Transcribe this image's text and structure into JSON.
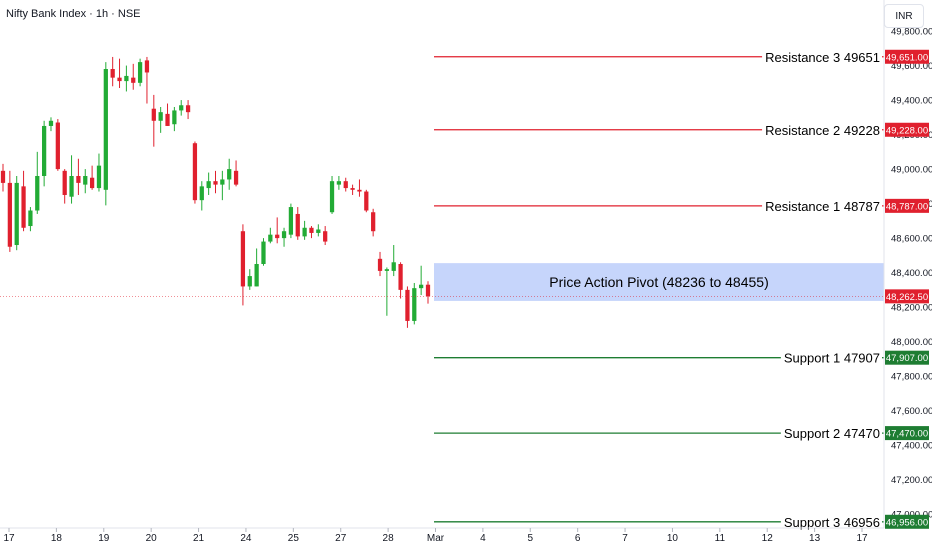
{
  "header": {
    "title": "Nifty Bank Index · 1h · NSE",
    "currency": "INR"
  },
  "colors": {
    "up": "#22ab35",
    "down": "#e0202e",
    "resistance": "#e0202e",
    "support": "#1e7d32",
    "pivot_fill": "#c6d5fb",
    "current": "#e0202e"
  },
  "chart_data": {
    "type": "candlestick",
    "y_ticks": [
      "47,000.00",
      "47,200.00",
      "47,400.00",
      "47,600.00",
      "47,800.00",
      "48,000.00",
      "48,200.00",
      "48,400.00",
      "48,600.00",
      "48,800.00",
      "49,000.00",
      "49,200.00",
      "49,400.00",
      "49,600.00",
      "49,800.00"
    ],
    "ylim": [
      46920,
      49980
    ],
    "x_labels": [
      "17",
      "18",
      "19",
      "20",
      "21",
      "24",
      "25",
      "27",
      "28",
      "Mar",
      "4",
      "5",
      "6",
      "7",
      "10",
      "11",
      "12",
      "13",
      "17"
    ],
    "levels": [
      {
        "kind": "resistance",
        "label": "Resistance 3 49651",
        "value": 49651,
        "price_label": "49,651.00"
      },
      {
        "kind": "resistance",
        "label": "Resistance 2 49228",
        "value": 49228,
        "price_label": "49,228.00"
      },
      {
        "kind": "resistance",
        "label": "Resistance 1 48787",
        "value": 48787,
        "price_label": "48,787.00"
      },
      {
        "kind": "support",
        "label": "Support 1 47907",
        "value": 47907,
        "price_label": "47,907.00"
      },
      {
        "kind": "support",
        "label": "Support 2 47470",
        "value": 47470,
        "price_label": "47,470.00"
      },
      {
        "kind": "support",
        "label": "Support 3 46956",
        "value": 46956,
        "price_label": "46,956.00"
      }
    ],
    "pivot": {
      "label": "Price Action Pivot (48236 to 48455)",
      "low": 48236,
      "high": 48455
    },
    "current_price": {
      "value": 48262.5,
      "price_label": "48,262.50"
    },
    "candles": [
      {
        "o": 48990,
        "h": 49030,
        "l": 48870,
        "c": 48920
      },
      {
        "o": 48920,
        "h": 48990,
        "l": 48520,
        "c": 48550
      },
      {
        "o": 48560,
        "h": 48960,
        "l": 48530,
        "c": 48920
      },
      {
        "o": 48900,
        "h": 48990,
        "l": 48640,
        "c": 48660
      },
      {
        "o": 48670,
        "h": 48780,
        "l": 48640,
        "c": 48760
      },
      {
        "o": 48760,
        "h": 49100,
        "l": 48740,
        "c": 48960
      },
      {
        "o": 48960,
        "h": 49280,
        "l": 48900,
        "c": 49250
      },
      {
        "o": 49250,
        "h": 49300,
        "l": 49220,
        "c": 49280
      },
      {
        "o": 49270,
        "h": 49290,
        "l": 48990,
        "c": 49000
      },
      {
        "o": 48990,
        "h": 49000,
        "l": 48800,
        "c": 48850
      },
      {
        "o": 48840,
        "h": 49080,
        "l": 48800,
        "c": 48960
      },
      {
        "o": 48960,
        "h": 49060,
        "l": 48850,
        "c": 48920
      },
      {
        "o": 48910,
        "h": 49000,
        "l": 48860,
        "c": 48960
      },
      {
        "o": 48950,
        "h": 49020,
        "l": 48880,
        "c": 48890
      },
      {
        "o": 48890,
        "h": 49090,
        "l": 48870,
        "c": 49020
      },
      {
        "o": 48880,
        "h": 49620,
        "l": 48790,
        "c": 49580
      },
      {
        "o": 49580,
        "h": 49650,
        "l": 49480,
        "c": 49530
      },
      {
        "o": 49530,
        "h": 49640,
        "l": 49470,
        "c": 49510
      },
      {
        "o": 49510,
        "h": 49600,
        "l": 49450,
        "c": 49540
      },
      {
        "o": 49530,
        "h": 49610,
        "l": 49460,
        "c": 49500
      },
      {
        "o": 49500,
        "h": 49640,
        "l": 49480,
        "c": 49620
      },
      {
        "o": 49630,
        "h": 49650,
        "l": 49380,
        "c": 49560
      },
      {
        "o": 49350,
        "h": 49430,
        "l": 49130,
        "c": 49280
      },
      {
        "o": 49280,
        "h": 49360,
        "l": 49210,
        "c": 49330
      },
      {
        "o": 49320,
        "h": 49380,
        "l": 49250,
        "c": 49250
      },
      {
        "o": 49260,
        "h": 49360,
        "l": 49220,
        "c": 49340
      },
      {
        "o": 49340,
        "h": 49400,
        "l": 49310,
        "c": 49370
      },
      {
        "o": 49370,
        "h": 49400,
        "l": 49290,
        "c": 49330
      },
      {
        "o": 49150,
        "h": 49160,
        "l": 48800,
        "c": 48820
      },
      {
        "o": 48820,
        "h": 48930,
        "l": 48760,
        "c": 48900
      },
      {
        "o": 48890,
        "h": 48980,
        "l": 48850,
        "c": 48930
      },
      {
        "o": 48930,
        "h": 48990,
        "l": 48860,
        "c": 48910
      },
      {
        "o": 48910,
        "h": 48990,
        "l": 48820,
        "c": 48940
      },
      {
        "o": 48940,
        "h": 49060,
        "l": 48880,
        "c": 49000
      },
      {
        "o": 48990,
        "h": 49050,
        "l": 48900,
        "c": 48910
      },
      {
        "o": 48640,
        "h": 48680,
        "l": 48210,
        "c": 48320
      },
      {
        "o": 48320,
        "h": 48420,
        "l": 48300,
        "c": 48380
      },
      {
        "o": 48320,
        "h": 48540,
        "l": 48320,
        "c": 48450
      },
      {
        "o": 48450,
        "h": 48600,
        "l": 48440,
        "c": 48580
      },
      {
        "o": 48580,
        "h": 48660,
        "l": 48570,
        "c": 48620
      },
      {
        "o": 48620,
        "h": 48720,
        "l": 48570,
        "c": 48600
      },
      {
        "o": 48600,
        "h": 48660,
        "l": 48550,
        "c": 48640
      },
      {
        "o": 48620,
        "h": 48800,
        "l": 48600,
        "c": 48780
      },
      {
        "o": 48740,
        "h": 48780,
        "l": 48590,
        "c": 48610
      },
      {
        "o": 48610,
        "h": 48700,
        "l": 48590,
        "c": 48660
      },
      {
        "o": 48660,
        "h": 48670,
        "l": 48600,
        "c": 48630
      },
      {
        "o": 48630,
        "h": 48680,
        "l": 48610,
        "c": 48650
      },
      {
        "o": 48640,
        "h": 48670,
        "l": 48560,
        "c": 48580
      },
      {
        "o": 48750,
        "h": 48960,
        "l": 48740,
        "c": 48930
      },
      {
        "o": 48910,
        "h": 48960,
        "l": 48880,
        "c": 48930
      },
      {
        "o": 48930,
        "h": 48950,
        "l": 48870,
        "c": 48890
      },
      {
        "o": 48890,
        "h": 48910,
        "l": 48850,
        "c": 48880
      },
      {
        "o": 48880,
        "h": 48940,
        "l": 48840,
        "c": 48870
      },
      {
        "o": 48870,
        "h": 48880,
        "l": 48750,
        "c": 48760
      },
      {
        "o": 48750,
        "h": 48770,
        "l": 48610,
        "c": 48640
      },
      {
        "o": 48480,
        "h": 48520,
        "l": 48380,
        "c": 48410
      },
      {
        "o": 48410,
        "h": 48430,
        "l": 48150,
        "c": 48420
      },
      {
        "o": 48410,
        "h": 48560,
        "l": 48380,
        "c": 48460
      },
      {
        "o": 48450,
        "h": 48460,
        "l": 48250,
        "c": 48300
      },
      {
        "o": 48300,
        "h": 48320,
        "l": 48080,
        "c": 48120
      },
      {
        "o": 48120,
        "h": 48340,
        "l": 48100,
        "c": 48310
      },
      {
        "o": 48310,
        "h": 48440,
        "l": 48270,
        "c": 48330
      },
      {
        "o": 48330,
        "h": 48350,
        "l": 48220,
        "c": 48262.5
      }
    ]
  }
}
